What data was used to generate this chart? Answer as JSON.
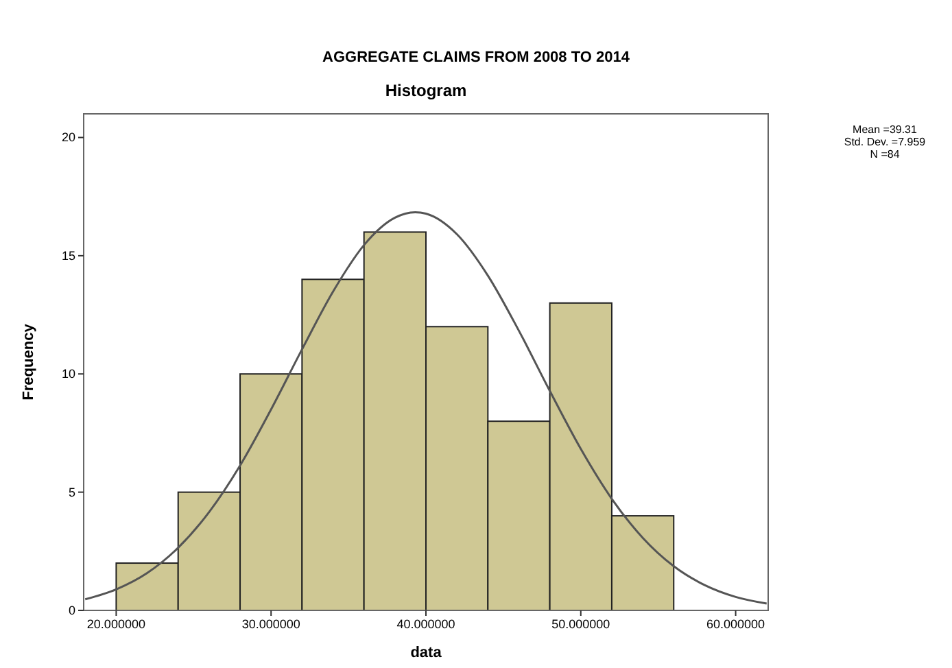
{
  "chart_data": {
    "type": "histogram",
    "title": "AGGREGATE CLAIMS FROM 2008 TO 2014",
    "subtitle": "Histogram",
    "xlabel": "data",
    "ylabel": "Frequency",
    "bins": [
      20,
      24,
      28,
      32,
      36,
      40,
      44,
      48,
      52,
      56
    ],
    "values": [
      2,
      5,
      10,
      14,
      16,
      12,
      8,
      13,
      4
    ],
    "color": "#cfc894",
    "series": [
      {
        "type": "line",
        "color": "#555555",
        "x": [
          18,
          20,
          22,
          24,
          26,
          28,
          30,
          32,
          34,
          36,
          38,
          39.31,
          40,
          42,
          44,
          46,
          48,
          50,
          52,
          54,
          56,
          58,
          60,
          62
        ],
        "values": [
          0.47,
          0.89,
          1.58,
          2.65,
          4.16,
          6.13,
          8.5,
          11.04,
          13.48,
          15.45,
          16.61,
          16.84,
          16.78,
          15.91,
          14.16,
          11.83,
          9.28,
          6.83,
          4.72,
          3.07,
          1.87,
          1.07,
          0.57,
          0.29
        ]
      }
    ],
    "xlim": [
      17.9,
      62.1
    ],
    "ylim": [
      0,
      21
    ],
    "xticks": [
      {
        "value": 20,
        "label": "20.000000"
      },
      {
        "value": 30,
        "label": "30.000000"
      },
      {
        "value": 40,
        "label": "40.000000"
      },
      {
        "value": 50,
        "label": "50.000000"
      },
      {
        "value": 60,
        "label": "60.000000"
      }
    ],
    "yticks": [
      0,
      5,
      10,
      15,
      20
    ],
    "annotations": [
      "Mean =39.31",
      "Std. Dev. =7.959",
      "N =84"
    ]
  }
}
